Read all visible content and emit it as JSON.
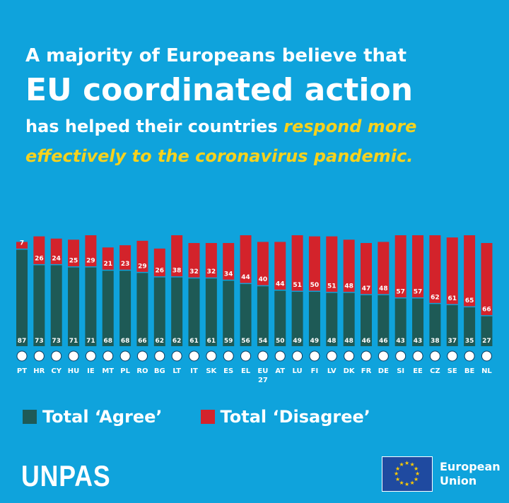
{
  "headline": {
    "line1": "A majority of Europeans believe that",
    "line2": "EU coordinated action",
    "line3_prefix": "has helped their countries ",
    "line3_highlight": "respond more",
    "line4_highlight": "effectively to the coronavirus pandemic."
  },
  "colors": {
    "background": "#0fa3dc",
    "agree": "#1e5a56",
    "disagree": "#d3232b",
    "highlight": "#f6d21e"
  },
  "chart_data": {
    "type": "bar",
    "stacked": true,
    "categories": [
      "PT",
      "HR",
      "CY",
      "HU",
      "IE",
      "MT",
      "PL",
      "RO",
      "BG",
      "LT",
      "IT",
      "SK",
      "ES",
      "EL",
      "EU 27",
      "AT",
      "LU",
      "FI",
      "LV",
      "DK",
      "FR",
      "DE",
      "SI",
      "EE",
      "CZ",
      "SE",
      "BE",
      "NL"
    ],
    "series": [
      {
        "name": "Total ‘Agree’",
        "color": "#1e5a56",
        "values": [
          87,
          73,
          73,
          71,
          71,
          68,
          68,
          66,
          62,
          62,
          61,
          61,
          59,
          56,
          54,
          50,
          49,
          49,
          48,
          48,
          46,
          46,
          43,
          43,
          38,
          37,
          35,
          27
        ]
      },
      {
        "name": "Total ‘Disagree’",
        "color": "#d3232b",
        "values": [
          7,
          26,
          24,
          25,
          29,
          21,
          23,
          29,
          26,
          38,
          32,
          32,
          34,
          44,
          40,
          44,
          51,
          50,
          51,
          48,
          47,
          48,
          57,
          57,
          62,
          61,
          65,
          66
        ]
      }
    ],
    "flag_icons": [
      "portugal-flag-icon",
      "croatia-flag-icon",
      "cyprus-flag-icon",
      "hungary-flag-icon",
      "ireland-flag-icon",
      "malta-flag-icon",
      "poland-flag-icon",
      "romania-flag-icon",
      "bulgaria-flag-icon",
      "lithuania-flag-icon",
      "italy-flag-icon",
      "slovakia-flag-icon",
      "spain-flag-icon",
      "greece-flag-icon",
      "eu-flag-icon",
      "austria-flag-icon",
      "luxembourg-flag-icon",
      "finland-flag-icon",
      "latvia-flag-icon",
      "denmark-flag-icon",
      "france-flag-icon",
      "germany-flag-icon",
      "slovenia-flag-icon",
      "estonia-flag-icon",
      "czechia-flag-icon",
      "sweden-flag-icon",
      "belgium-flag-icon",
      "netherlands-flag-icon"
    ],
    "ylim": [
      0,
      100
    ],
    "grid": false,
    "legend_position": "bottom-left"
  },
  "legend": {
    "agree": "Total ‘Agree’",
    "disagree": "Total ‘Disagree’"
  },
  "footer": {
    "brand": "UNPAS",
    "eu_line1": "European",
    "eu_line2": "Union"
  }
}
